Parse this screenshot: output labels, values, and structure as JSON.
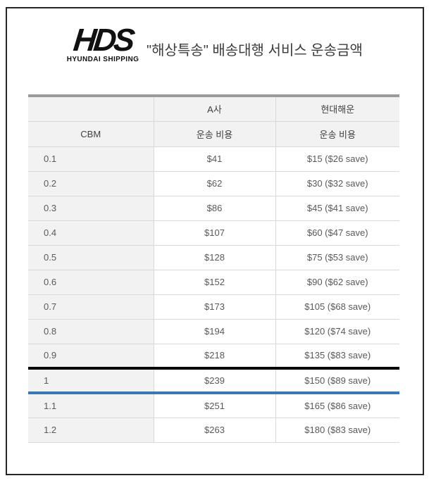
{
  "logo": {
    "text": "HDS",
    "subtext": "HYUNDAI SHIPPING"
  },
  "title": "\"해상특송\" 배송대행 서비스 운송금액",
  "table": {
    "header_row1": [
      "",
      "A사",
      "현대해운"
    ],
    "header_row2": [
      "CBM",
      "운송 비용",
      "운송 비용"
    ],
    "rows": [
      {
        "cbm": "0.1",
        "a_cost": "$41",
        "hds_cost": "$15 ($26 save)"
      },
      {
        "cbm": "0.2",
        "a_cost": "$62",
        "hds_cost": "$30 ($32 save)"
      },
      {
        "cbm": "0.3",
        "a_cost": "$86",
        "hds_cost": "$45 ($41 save)"
      },
      {
        "cbm": "0.4",
        "a_cost": "$107",
        "hds_cost": "$60 ($47 save)"
      },
      {
        "cbm": "0.5",
        "a_cost": "$128",
        "hds_cost": "$75 ($53 save)"
      },
      {
        "cbm": "0.6",
        "a_cost": "$152",
        "hds_cost": "$90 ($62 save)"
      },
      {
        "cbm": "0.7",
        "a_cost": "$173",
        "hds_cost": "$105 ($68 save)"
      },
      {
        "cbm": "0.8",
        "a_cost": "$194",
        "hds_cost": "$120 ($74 save)"
      },
      {
        "cbm": "0.9",
        "a_cost": "$218",
        "hds_cost": "$135 ($83 save)"
      },
      {
        "cbm": "1",
        "a_cost": "$239",
        "hds_cost": "$150 ($89 save)"
      },
      {
        "cbm": "1.1",
        "a_cost": "$251",
        "hds_cost": "$165 ($86 save)"
      },
      {
        "cbm": "1.2",
        "a_cost": "$263",
        "hds_cost": "$180 ($83 save)"
      }
    ],
    "highlight_cbm": "1",
    "colors": {
      "top_bar": "#9a9a9a",
      "highlight_top": "#000000",
      "highlight_bottom": "#3a78b5",
      "header_bg": "#f2f2f2",
      "grid_line": "#d9d9d9"
    }
  }
}
